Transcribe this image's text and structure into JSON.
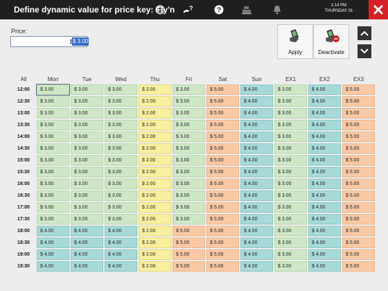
{
  "header": {
    "title": "Define dynamic value for price key: Fly'n",
    "time": "1:14 PM",
    "date": "THURSDAY 01",
    "icons": [
      "globe-icon",
      "hand-question-icon",
      "help-icon",
      "cash-register-icon",
      "bell-icon",
      "close-icon"
    ]
  },
  "price": {
    "label": "Price:",
    "value": "$ 3.00"
  },
  "actions": {
    "apply": "Apply",
    "deactivate": "Deactivate"
  },
  "colors": {
    "c3": "#cfe7c6",
    "c2": "#f8ef9f",
    "c4": "#a8d9d9",
    "c5": "#f9c9a5",
    "topbar": "#1f1f1f",
    "close": "#d62027"
  },
  "grid": {
    "corner": "All",
    "columns": [
      "Mon",
      "Tue",
      "Wed",
      "Thu",
      "Fri",
      "Sat",
      "Sun",
      "EX1",
      "EX2",
      "EX3"
    ],
    "rows": [
      {
        "time": "12:00",
        "values": [
          "$ 3.00",
          "$ 3.00",
          "$ 3.00",
          "$ 2.00",
          "$ 3.00",
          "$ 5.00",
          "$ 4.00",
          "$ 3.00",
          "$ 4.00",
          "$ 5.00"
        ]
      },
      {
        "time": "12:30",
        "values": [
          "$ 3.00",
          "$ 3.00",
          "$ 3.00",
          "$ 2.00",
          "$ 3.00",
          "$ 5.00",
          "$ 4.00",
          "$ 3.00",
          "$ 4.00",
          "$ 5.00"
        ]
      },
      {
        "time": "13:00",
        "values": [
          "$ 3.00",
          "$ 3.00",
          "$ 3.00",
          "$ 2.00",
          "$ 3.00",
          "$ 5.00",
          "$ 4.00",
          "$ 3.00",
          "$ 4.00",
          "$ 5.00"
        ]
      },
      {
        "time": "13:30",
        "values": [
          "$ 3.00",
          "$ 3.00",
          "$ 3.00",
          "$ 2.00",
          "$ 3.00",
          "$ 5.00",
          "$ 4.00",
          "$ 3.00",
          "$ 4.00",
          "$ 5.00"
        ]
      },
      {
        "time": "14:00",
        "values": [
          "$ 3.00",
          "$ 3.00",
          "$ 3.00",
          "$ 2.00",
          "$ 3.00",
          "$ 5.00",
          "$ 4.00",
          "$ 3.00",
          "$ 4.00",
          "$ 5.00"
        ]
      },
      {
        "time": "14:30",
        "values": [
          "$ 3.00",
          "$ 3.00",
          "$ 3.00",
          "$ 2.00",
          "$ 3.00",
          "$ 5.00",
          "$ 4.00",
          "$ 3.00",
          "$ 4.00",
          "$ 5.00"
        ]
      },
      {
        "time": "15:00",
        "values": [
          "$ 3.00",
          "$ 3.00",
          "$ 3.00",
          "$ 2.00",
          "$ 3.00",
          "$ 5.00",
          "$ 4.00",
          "$ 3.00",
          "$ 4.00",
          "$ 5.00"
        ]
      },
      {
        "time": "15:30",
        "values": [
          "$ 3.00",
          "$ 3.00",
          "$ 3.00",
          "$ 2.00",
          "$ 3.00",
          "$ 5.00",
          "$ 4.00",
          "$ 3.00",
          "$ 4.00",
          "$ 5.00"
        ]
      },
      {
        "time": "16:00",
        "values": [
          "$ 3.00",
          "$ 3.00",
          "$ 3.00",
          "$ 2.00",
          "$ 3.00",
          "$ 5.00",
          "$ 4.00",
          "$ 3.00",
          "$ 4.00",
          "$ 5.00"
        ]
      },
      {
        "time": "16:30",
        "values": [
          "$ 3.00",
          "$ 3.00",
          "$ 3.00",
          "$ 2.00",
          "$ 3.00",
          "$ 5.00",
          "$ 4.00",
          "$ 3.00",
          "$ 4.00",
          "$ 5.00"
        ]
      },
      {
        "time": "17:00",
        "values": [
          "$ 3.00",
          "$ 3.00",
          "$ 3.00",
          "$ 2.00",
          "$ 3.00",
          "$ 5.00",
          "$ 4.00",
          "$ 3.00",
          "$ 4.00",
          "$ 5.00"
        ]
      },
      {
        "time": "17:30",
        "values": [
          "$ 3.00",
          "$ 3.00",
          "$ 3.00",
          "$ 2.00",
          "$ 3.00",
          "$ 5.00",
          "$ 4.00",
          "$ 3.00",
          "$ 4.00",
          "$ 5.00"
        ]
      },
      {
        "time": "18:00",
        "values": [
          "$ 4.00",
          "$ 4.00",
          "$ 4.00",
          "$ 2.00",
          "$ 5.00",
          "$ 5.00",
          "$ 4.00",
          "$ 3.00",
          "$ 4.00",
          "$ 5.00"
        ]
      },
      {
        "time": "18:30",
        "values": [
          "$ 4.00",
          "$ 4.00",
          "$ 4.00",
          "$ 2.00",
          "$ 5.00",
          "$ 5.00",
          "$ 4.00",
          "$ 3.00",
          "$ 4.00",
          "$ 5.00"
        ]
      },
      {
        "time": "19:00",
        "values": [
          "$ 4.00",
          "$ 4.00",
          "$ 4.00",
          "$ 2.00",
          "$ 5.00",
          "$ 5.00",
          "$ 4.00",
          "$ 3.00",
          "$ 4.00",
          "$ 5.00"
        ]
      },
      {
        "time": "19:30",
        "values": [
          "$ 4.00",
          "$ 4.00",
          "$ 4.00",
          "$ 2.00",
          "$ 5.00",
          "$ 5.00",
          "$ 4.00",
          "$ 3.00",
          "$ 4.00",
          "$ 5.00"
        ]
      }
    ]
  }
}
